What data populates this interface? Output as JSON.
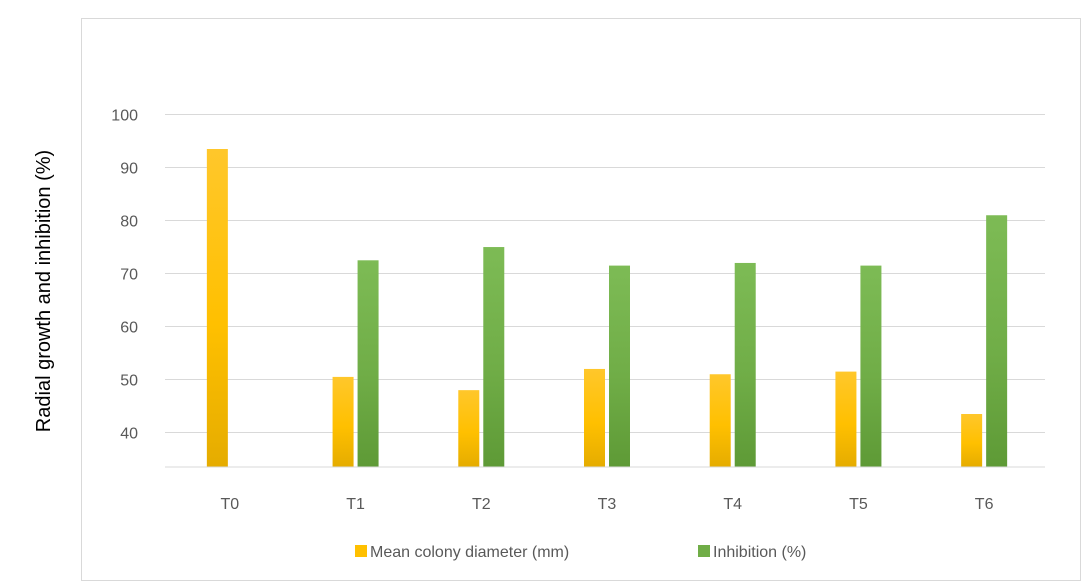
{
  "chart_data": {
    "type": "bar",
    "title": "",
    "xlabel": "",
    "ylabel": "Radial growth and inhibition (%)",
    "categories": [
      "T0",
      "T1",
      "T2",
      "T3",
      "T4",
      "T5",
      "T6"
    ],
    "ylim": [
      33.5,
      100
    ],
    "yticks": [
      40,
      50,
      60,
      70,
      80,
      90,
      100
    ],
    "grid": true,
    "legend_position": "bottom",
    "series": [
      {
        "name": "Mean colony diameter (mm)",
        "color": "#ffc000",
        "values": [
          93.5,
          50.5,
          48,
          52,
          51,
          51.5,
          43.5
        ]
      },
      {
        "name": "Inhibition (%)",
        "color": "#70ad47",
        "values": [
          null,
          72.5,
          75,
          71.5,
          72,
          71.5,
          81
        ]
      }
    ]
  }
}
